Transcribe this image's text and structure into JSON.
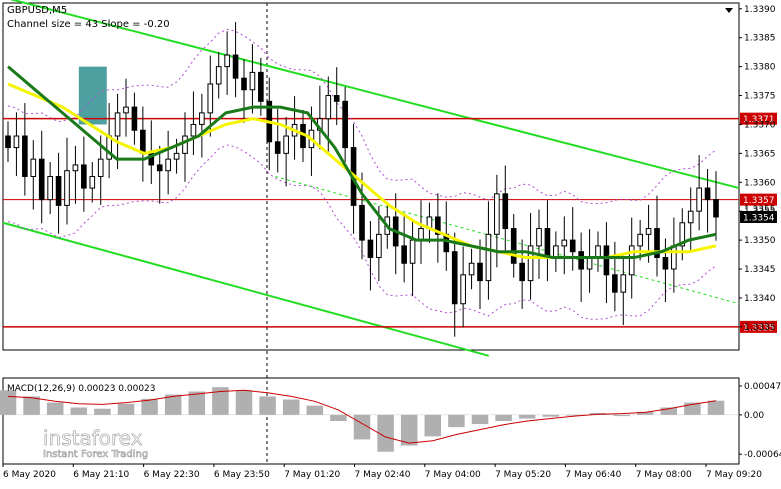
{
  "header": {
    "symbol": "GBPUSD,M5",
    "channel_info": "Channel size = 43 Slope = -0.20"
  },
  "macd": {
    "label": "MACD(12,26,9) 0.00023 0.00023",
    "ticks": [
      "0.00047",
      "0.00",
      "-0.00064"
    ]
  },
  "logo": {
    "name": "instaforex",
    "tagline": "Instant Forex Trading",
    "text_color": "#ffffff"
  },
  "colors": {
    "background": "#ffffff",
    "candle": "#000000",
    "ma_fast": "#1a7a1a",
    "ma_slow": "#f5f500",
    "channel": "#22dd22",
    "bollinger": "#b04fd0",
    "level_line": "#cc0000",
    "level_badge": "#cc0000",
    "price_badge": "#000000",
    "highlight_box": "#2f8f8f",
    "macd_hist": "#b0b0b0",
    "macd_signal": "#cc0000"
  },
  "chart_data": {
    "type": "candlestick",
    "price_axis": {
      "ticks": [
        "1.3390",
        "1.3385",
        "1.3380",
        "1.3375",
        "1.3370",
        "1.3365",
        "1.3360",
        "1.3355",
        "1.3350",
        "1.3345",
        "1.3340",
        "1.3335"
      ],
      "range": [
        1.3331,
        1.3391
      ]
    },
    "time_axis": {
      "labels": [
        "6 May 2020",
        "6 May 21:10",
        "6 May 22:30",
        "6 May 23:50",
        "7 May 01:20",
        "7 May 02:40",
        "7 May 04:00",
        "7 May 05:20",
        "7 May 06:40",
        "7 May 08:00",
        "7 May 09:20"
      ]
    },
    "levels": [
      {
        "price": 1.3371,
        "label": "1.3371",
        "style": "solid"
      },
      {
        "price": 1.3357,
        "label": "1.3357",
        "style": "solid-thin"
      },
      {
        "price": 1.3335,
        "label": "1.3335",
        "style": "solid"
      }
    ],
    "current_price": {
      "price": 1.3354,
      "label": "1.3354"
    },
    "extra_label": "1.3355",
    "channel": {
      "upper": [
        [
          0,
          1.3392
        ],
        [
          1,
          1.3359
        ]
      ],
      "lower": [
        [
          0,
          1.3353
        ],
        [
          0.66,
          1.333
        ]
      ],
      "mid": [
        [
          0.37,
          1.3361
        ],
        [
          1,
          1.3339
        ]
      ]
    },
    "highlight": {
      "x_range": [
        0.103,
        0.141
      ],
      "price_range": [
        1.337,
        1.338
      ]
    },
    "series": [
      {
        "name": "",
        "kind": "candles",
        "points": [
          1.3366,
          1.3368,
          1.3361,
          1.3364,
          1.3357,
          1.3361,
          1.3356,
          1.3362,
          1.3363,
          1.3359,
          1.3361,
          1.3364,
          1.3368,
          1.3372,
          1.3373,
          1.3369,
          1.3365,
          1.3363,
          1.3362,
          1.3364,
          1.3365,
          1.3368,
          1.337,
          1.3372,
          1.3377,
          1.338,
          1.3382,
          1.3378,
          1.3376,
          1.3379,
          1.3374,
          1.3367,
          1.3365,
          1.3368,
          1.337,
          1.3366,
          1.3369,
          1.3371,
          1.3375,
          1.3374,
          1.3366,
          1.3356,
          1.335,
          1.3347,
          1.3351,
          1.3354,
          1.3349,
          1.3346,
          1.335,
          1.3352,
          1.3354,
          1.3351,
          1.3348,
          1.3339,
          1.3344,
          1.3346,
          1.3343,
          1.3351,
          1.3358,
          1.3352,
          1.3346,
          1.3343,
          1.3349,
          1.3352,
          1.3347,
          1.3349,
          1.335,
          1.3348,
          1.3345,
          1.3347,
          1.3349,
          1.3344,
          1.3341,
          1.3344,
          1.3349,
          1.3351,
          1.3352,
          1.3347,
          1.3345,
          1.3349,
          1.3353,
          1.3355,
          1.3359,
          1.3357,
          1.3354
        ]
      },
      {
        "name": "",
        "kind": "ma_fast",
        "points": [
          1.338,
          1.3376,
          1.3372,
          1.3368,
          1.3364,
          1.3364,
          1.3366,
          1.3368,
          1.3372,
          1.3373,
          1.3373,
          1.3372,
          1.3366,
          1.3358,
          1.3352,
          1.335,
          1.335,
          1.3349,
          1.3348,
          1.3348,
          1.3347,
          1.3347,
          1.3347,
          1.3347,
          1.3348,
          1.335,
          1.3351
        ]
      },
      {
        "name": "",
        "kind": "ma_slow",
        "points": [
          1.3377,
          1.3375,
          1.3373,
          1.337,
          1.3367,
          1.3365,
          1.3366,
          1.3368,
          1.337,
          1.3371,
          1.337,
          1.3368,
          1.3364,
          1.336,
          1.3356,
          1.3353,
          1.3351,
          1.3349,
          1.3348,
          1.3347,
          1.3347,
          1.3347,
          1.3347,
          1.3348,
          1.3348,
          1.3348,
          1.3349
        ]
      },
      {
        "name": "",
        "kind": "macd_hist",
        "points": [
          0.0004,
          0.0003,
          0.0002,
          0.00012,
          0.0001,
          0.00018,
          0.00026,
          0.00033,
          0.00038,
          0.00045,
          0.0004,
          0.0003,
          0.00025,
          0.00015,
          -0.0001,
          -0.0004,
          -0.0006,
          -0.0005,
          -0.00035,
          -0.0002,
          -0.00015,
          -0.0001,
          -6e-05,
          -3e-05,
          0.0,
          3e-05,
          -2e-05,
          5e-05,
          0.00012,
          0.0002,
          0.00023
        ]
      },
      {
        "name": "",
        "kind": "macd_signal",
        "points": [
          0.0003,
          0.00028,
          0.00022,
          0.00018,
          0.00017,
          0.0002,
          0.00024,
          0.0003,
          0.00034,
          0.00038,
          0.0004,
          0.00036,
          0.0003,
          0.00022,
          8e-05,
          -0.00014,
          -0.00036,
          -0.00046,
          -0.00042,
          -0.00032,
          -0.00024,
          -0.00016,
          -0.0001,
          -6e-05,
          -2e-05,
          1e-05,
          2e-05,
          4e-05,
          0.0001,
          0.00017,
          0.00023
        ]
      }
    ]
  }
}
